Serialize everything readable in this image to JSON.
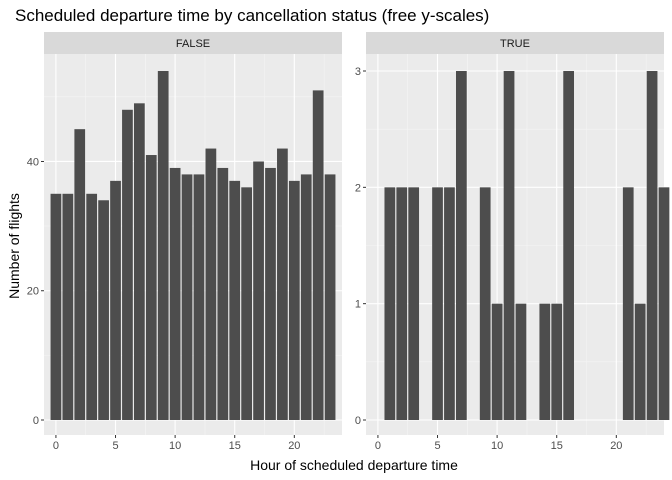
{
  "chart_data": {
    "type": "bar",
    "title": "Scheduled departure time by cancellation status (free y-scales)",
    "xlabel": "Hour of scheduled departure time",
    "ylabel": "Number of flights",
    "x_ticks": [
      0,
      5,
      10,
      15,
      20
    ],
    "xlim": [
      -1,
      24
    ],
    "grid": true,
    "bar_color": "#4d4d4d",
    "panel_background": "#ebebeb",
    "strip_background": "#d9d9d9",
    "panels": [
      {
        "strip": "FALSE",
        "ylim": [
          0,
          54
        ],
        "y_ticks": [
          0,
          20,
          40
        ],
        "x": [
          0,
          1,
          2,
          3,
          4,
          5,
          6,
          7,
          8,
          9,
          10,
          11,
          12,
          13,
          14,
          15,
          16,
          17,
          18,
          19,
          20,
          21,
          22,
          23
        ],
        "values": [
          35,
          35,
          45,
          35,
          34,
          37,
          48,
          49,
          41,
          54,
          39,
          38,
          38,
          42,
          39,
          37,
          36,
          40,
          39,
          42,
          37,
          38,
          51,
          38
        ]
      },
      {
        "strip": "TRUE",
        "ylim": [
          0,
          3
        ],
        "y_ticks": [
          0,
          1,
          2,
          3
        ],
        "x": [
          1,
          2,
          3,
          5,
          6,
          7,
          9,
          10,
          11,
          12,
          14,
          15,
          16,
          21,
          22,
          23,
          24
        ],
        "values": [
          2,
          2,
          2,
          2,
          2,
          3,
          2,
          1,
          3,
          1,
          1,
          1,
          3,
          2,
          1,
          3,
          2
        ]
      }
    ]
  }
}
